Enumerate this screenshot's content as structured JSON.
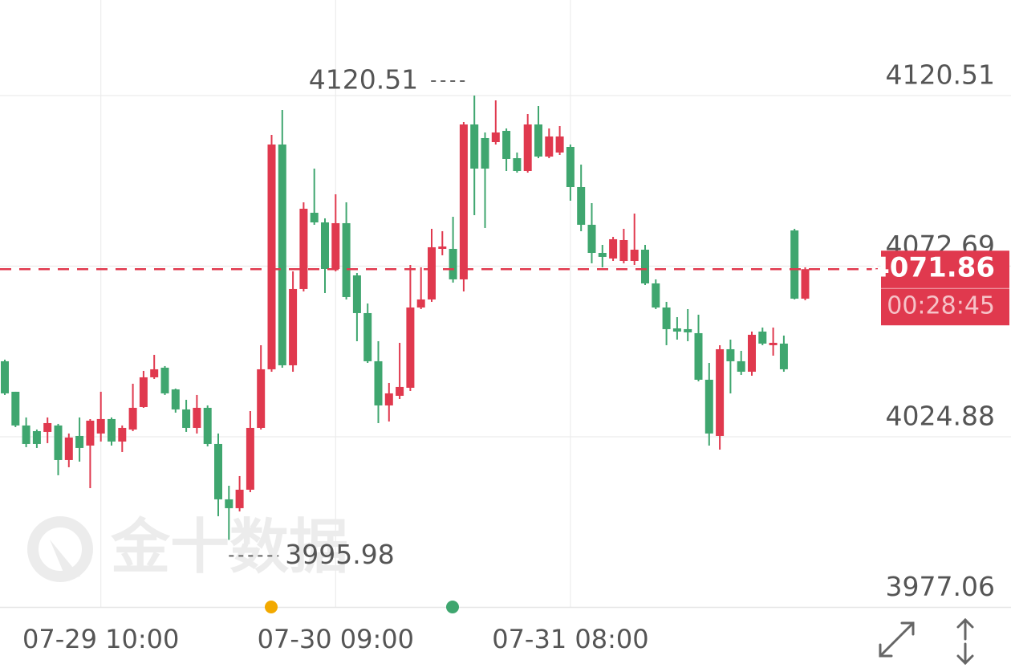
{
  "chart_data": {
    "type": "candlestick",
    "categories": [
      null,
      null,
      null,
      null,
      null,
      null,
      null,
      null,
      null,
      "07-29 10:00",
      null,
      null,
      null,
      null,
      null,
      null,
      null,
      null,
      null,
      null,
      null,
      null,
      null,
      null,
      null,
      null,
      null,
      null,
      null,
      null,
      null,
      "07-30 09:00",
      null,
      null,
      null,
      null,
      null,
      null,
      null,
      null,
      null,
      null,
      null,
      null,
      null,
      null,
      null,
      null,
      null,
      null,
      null,
      null,
      null,
      "07-31 08:00",
      null,
      null,
      null,
      null,
      null,
      null,
      null,
      null,
      null,
      null,
      null,
      null,
      null,
      null,
      null,
      null,
      null,
      null,
      null,
      null,
      null,
      null
    ],
    "open": [
      4046.04,
      4037.49,
      4028.04,
      4026.46,
      4026.24,
      4028.04,
      4018.36,
      4025.11,
      4022.41,
      4025.79,
      4029.84,
      4023.54,
      4026.91,
      4033.21,
      4041.54,
      4044.24,
      4038.16,
      4032.54,
      4027.36,
      4032.99,
      4022.86,
      4007.34,
      4004.86,
      4010.04,
      4027.36,
      4043.79,
      4106.79,
      4044.91,
      4066.29,
      4087.66,
      4084.96,
      4071.91,
      4084.74,
      4070.11,
      4059.54,
      4046.04,
      4033.66,
      4036.36,
      4038.61,
      4061.11,
      4063.36,
      4077.54,
      4077.54,
      4068.99,
      4112.41,
      4108.59,
      4107.46,
      4110.61,
      4102.96,
      4099.36,
      4112.41,
      4103.41,
      4104.54,
      4106.11,
      4094.86,
      4084.29,
      4076.41,
      4074.84,
      4074.16,
      4074.16,
      4077.31,
      4067.86,
      4061.11,
      4055.26,
      4055.04,
      4053.91,
      4040.86,
      4025.11,
      4049.41,
      4046.04,
      4043.11,
      4054.36,
      4050.54,
      4050.99,
      4082.71,
      4063.59
    ],
    "high": [
      4046.49,
      4037.49,
      4030.29,
      4026.91,
      4030.29,
      4028.49,
      4025.79,
      4030.29,
      4029.84,
      4037.49,
      4030.29,
      4028.04,
      4039.74,
      4043.34,
      4047.84,
      4044.69,
      4038.39,
      4035.24,
      4036.59,
      4033.66,
      4025.79,
      4011.16,
      4013.86,
      4032.09,
      4050.54,
      4109.49,
      4116.46,
      4071.24,
      4090.59,
      4100.04,
      4086.09,
      4092.84,
      4090.59,
      4070.79,
      4062.24,
      4051.66,
      4039.96,
      4051.21,
      4073.04,
      4072.36,
      4083.16,
      4082.49,
      4086.54,
      4113.09,
      4120.51,
      4110.16,
      4119.16,
      4111.29,
      4104.54,
      4115.34,
      4117.59,
      4111.29,
      4111.96,
      4106.79,
      4101.16,
      4090.36,
      4078.66,
      4080.91,
      4083.16,
      4087.44,
      4078.66,
      4068.99,
      4062.69,
      4058.41,
      4060.66,
      4059.09,
      4045.59,
      4050.54,
      4052.11,
      4048.96,
      4054.36,
      4055.49,
      4055.49,
      4053.24,
      4083.16,
      4072.36
    ],
    "low": [
      4036.59,
      4027.59,
      4021.96,
      4021.74,
      4023.09,
      4014.09,
      4016.34,
      4017.91,
      4010.49,
      4023.54,
      4022.41,
      4020.61,
      4026.46,
      4032.99,
      4041.09,
      4036.59,
      4031.64,
      4026.24,
      4025.79,
      4022.19,
      4002.61,
      3995.98,
      4003.96,
      4009.36,
      4026.91,
      4043.11,
      4044.24,
      4043.11,
      4065.61,
      4084.29,
      4065.16,
      4071.24,
      4063.36,
      4051.66,
      4045.59,
      4028.71,
      4029.16,
      4035.46,
      4037.71,
      4060.66,
      4062.69,
      4075.74,
      4068.09,
      4065.61,
      4086.99,
      4083.39,
      4106.79,
      4099.36,
      4098.91,
      4098.91,
      4102.96,
      4102.96,
      4103.86,
      4091.04,
      4082.49,
      4073.49,
      4072.36,
      4074.16,
      4073.49,
      4073.04,
      4067.41,
      4060.66,
      4050.54,
      4052.11,
      4051.66,
      4040.41,
      4022.41,
      4021.29,
      4037.04,
      4042.21,
      4041.99,
      4050.54,
      4047.61,
      4043.11,
      4063.36,
      4063.14
    ],
    "close": [
      4037.04,
      4028.04,
      4022.86,
      4022.86,
      4028.71,
      4018.36,
      4024.66,
      4021.74,
      4029.39,
      4029.84,
      4023.54,
      4027.36,
      4032.99,
      4041.54,
      4043.79,
      4037.04,
      4032.54,
      4027.36,
      4032.99,
      4022.86,
      4007.34,
      4004.86,
      4010.04,
      4027.36,
      4043.79,
      4106.79,
      4044.91,
      4066.29,
      4088.79,
      4084.96,
      4071.91,
      4084.74,
      4064.04,
      4059.54,
      4046.04,
      4033.66,
      4037.04,
      4038.84,
      4061.11,
      4063.36,
      4077.99,
      4078.21,
      4068.99,
      4112.41,
      4100.04,
      4100.04,
      4110.16,
      4102.74,
      4099.36,
      4112.41,
      4103.41,
      4109.04,
      4109.04,
      4094.86,
      4084.29,
      4076.41,
      4075.29,
      4080.24,
      4080.01,
      4077.31,
      4067.86,
      4061.11,
      4055.04,
      4054.36,
      4054.14,
      4040.86,
      4025.79,
      4049.41,
      4046.04,
      4043.11,
      4053.46,
      4050.99,
      4051.21,
      4043.79,
      4063.59,
      4071.86
    ],
    "up_color": "#e0394e",
    "down_color": "#3fa66f",
    "ylim": [
      3977.06,
      4147.29
    ],
    "yticks": [
      3977.06,
      4024.88,
      4072.69,
      4120.51
    ],
    "grid": true,
    "countdown": "00:28:45",
    "watermark": "金十数据"
  }
}
